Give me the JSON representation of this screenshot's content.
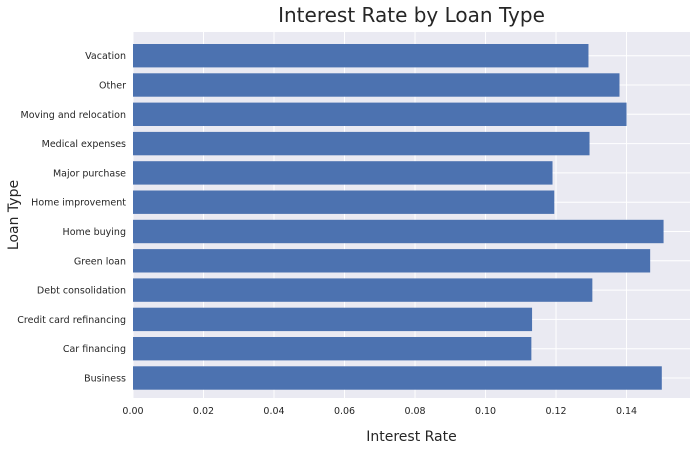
{
  "chart_data": {
    "type": "bar",
    "orientation": "horizontal",
    "title": "Interest Rate by Loan Type",
    "xlabel": "Interest Rate",
    "ylabel": "Loan Type",
    "categories": [
      "Business",
      "Car financing",
      "Credit card refinancing",
      "Debt consolidation",
      "Green loan",
      "Home buying",
      "Home improvement",
      "Major purchase",
      "Medical expenses",
      "Moving and relocation",
      "Other",
      "Vacation"
    ],
    "values": [
      0.15,
      0.113,
      0.1132,
      0.1303,
      0.1467,
      0.1505,
      0.1195,
      0.119,
      0.1295,
      0.14,
      0.138,
      0.1292
    ],
    "xlim": [
      0,
      0.158
    ],
    "xticks": [
      0.0,
      0.02,
      0.04,
      0.06,
      0.08,
      0.1,
      0.12,
      0.14
    ],
    "xtick_labels": [
      "0.00",
      "0.02",
      "0.04",
      "0.06",
      "0.08",
      "0.10",
      "0.12",
      "0.14"
    ],
    "grid": true,
    "style": "seaborn-darkgrid",
    "colors": {
      "bar": "#4c72b0",
      "plot_background": "#eaeaf2",
      "grid": "#ffffff",
      "text": "#262626"
    }
  }
}
